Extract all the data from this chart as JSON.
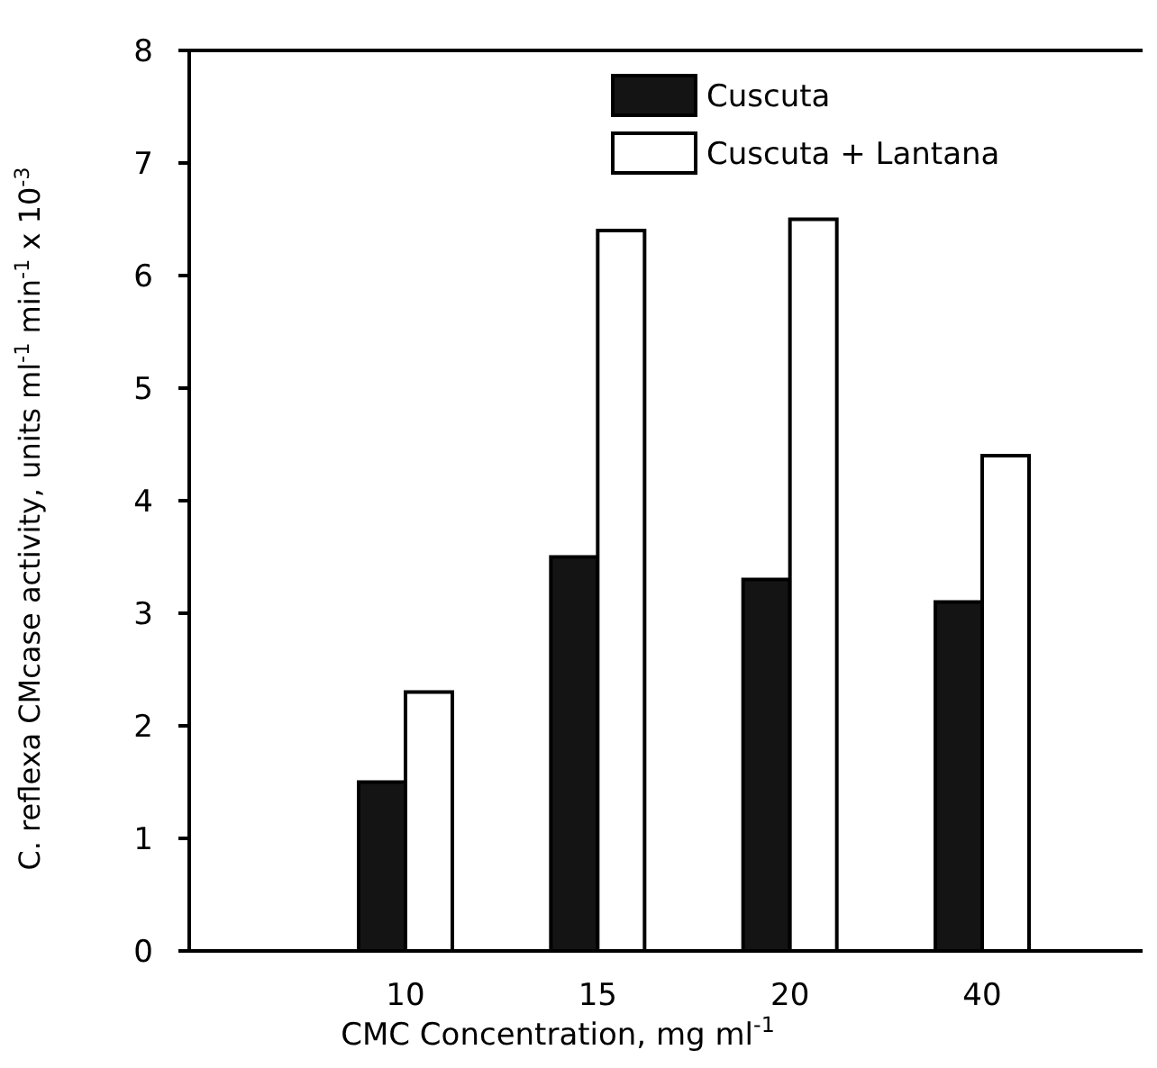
{
  "chart_data": {
    "type": "bar",
    "xlabel": "CMC Concentration, mg ml$^{-1}$",
    "ylabel": "C. reflexa CMcase activity, units ml$^{-1}$ min$^{-1}$ x 10$^{-3}$",
    "categories": [
      "10",
      "15",
      "20",
      "40"
    ],
    "series": [
      {
        "name": "Cuscuta",
        "color": "#141414",
        "values": [
          1.5,
          3.5,
          3.3,
          3.1
        ]
      },
      {
        "name": "Cuscuta + Lantana",
        "color": "#ffffff",
        "values": [
          2.3,
          6.4,
          6.5,
          4.4
        ]
      }
    ],
    "ylim": [
      0,
      8
    ],
    "yticks": [
      0,
      1,
      2,
      3,
      4,
      5,
      6,
      7,
      8
    ],
    "legend": "top right",
    "grid": false
  }
}
